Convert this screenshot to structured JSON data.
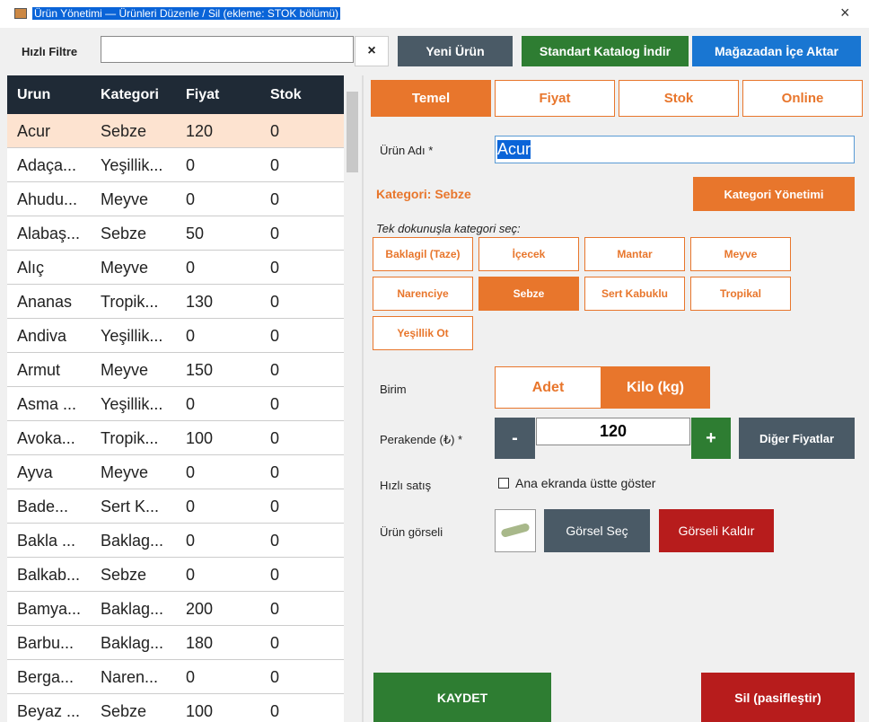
{
  "window": {
    "title": "Ürün Yönetimi — Ürünleri Düzenle / Sil (ekleme: STOK bölümü)",
    "close": "×"
  },
  "toolbar": {
    "filter_label": "Hızlı Filtre",
    "filter_clear": "×",
    "buttons": [
      "Yeni Ürün",
      "Standart Katalog İndir",
      "Mağazadan İçe Aktar"
    ]
  },
  "grid": {
    "columns": [
      "Urun",
      "Kategori",
      "Fiyat",
      "Stok"
    ],
    "rows": [
      [
        "Acur",
        "Sebze",
        120,
        0
      ],
      [
        "Adaça...",
        "Yeşillik...",
        0,
        0
      ],
      [
        "Ahudu...",
        "Meyve",
        0,
        0
      ],
      [
        "Alabaş...",
        "Sebze",
        50,
        0
      ],
      [
        "Alıç",
        "Meyve",
        0,
        0
      ],
      [
        "Ananas",
        "Tropik...",
        130,
        0
      ],
      [
        "Andiva",
        "Yeşillik...",
        0,
        0
      ],
      [
        "Armut",
        "Meyve",
        150,
        0
      ],
      [
        "Asma ...",
        "Yeşillik...",
        0,
        0
      ],
      [
        "Avoka...",
        "Tropik...",
        100,
        0
      ],
      [
        "Ayva",
        "Meyve",
        0,
        0
      ],
      [
        "Bade...",
        "Sert K...",
        0,
        0
      ],
      [
        "Bakla ...",
        "Baklag...",
        0,
        0
      ],
      [
        "Balkab...",
        "Sebze",
        0,
        0
      ],
      [
        "Bamya...",
        "Baklag...",
        200,
        0
      ],
      [
        "Barbu...",
        "Baklag...",
        180,
        0
      ],
      [
        "Berga...",
        "Naren...",
        0,
        0
      ],
      [
        "Beyaz ...",
        "Sebze",
        100,
        0
      ]
    ]
  },
  "tabs": [
    "Temel",
    "Fiyat",
    "Stok",
    "Online"
  ],
  "form": {
    "name_label": "Ürün Adı *",
    "name_value": "Acur",
    "category_label": "Kategori: Sebze",
    "category_manage": "Kategori Yönetimi",
    "quick_category_hint": "Tek dokunuşla kategori seç:",
    "categories": [
      "Baklagil (Taze)",
      "İçecek",
      "Mantar",
      "Meyve",
      "Narenciye",
      "Sebze",
      "Sert Kabuklu",
      "Tropikal",
      "Yeşillik  Ot"
    ],
    "unit_label": "Birim",
    "units": [
      "Adet",
      "Kilo (kg)"
    ],
    "price_label": "Perakende (₺) *",
    "price_minus": "-",
    "price_value": 120,
    "price_plus": "+",
    "other_prices": "Diğer Fiyatlar",
    "quick_sale_label": "Hızlı satış",
    "quick_sale_check": "Ana ekranda üstte göster",
    "image_label": "Ürün görseli",
    "image_select": "Görsel Seç",
    "image_remove": "Görseli Kaldır"
  },
  "actions": {
    "save": "KAYDET",
    "delete": "Sil (pasifleştir)"
  }
}
